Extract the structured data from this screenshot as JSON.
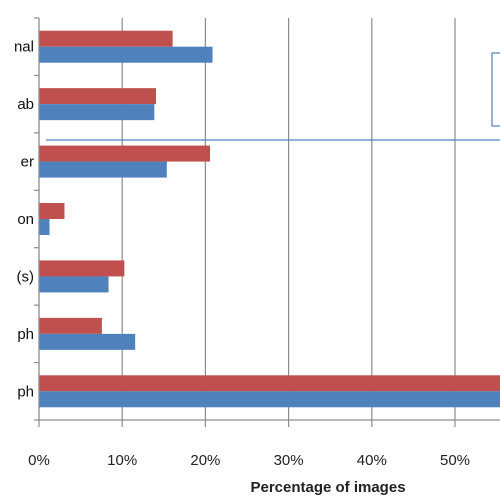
{
  "chart_data": {
    "type": "bar",
    "orientation": "horizontal",
    "categories": [
      "nal",
      "ab",
      "er",
      "on",
      "(s)",
      "ph",
      "ph"
    ],
    "series": [
      {
        "color": "#c0504d",
        "values": [
          16.0,
          14.0,
          20.5,
          3.0,
          10.2,
          7.5,
          56.0
        ]
      },
      {
        "color": "#4f81bd",
        "values": [
          20.8,
          13.8,
          15.3,
          1.2,
          8.3,
          11.5,
          56.0
        ]
      }
    ],
    "xlabel": "Percentage of images",
    "xlim": [
      0,
      55
    ],
    "xticks": [
      0,
      10,
      20,
      30,
      40,
      50
    ],
    "xtick_labels": [
      "0%",
      "10%",
      "20%",
      "30%",
      "40%",
      "50%"
    ],
    "grid": "vertical"
  }
}
